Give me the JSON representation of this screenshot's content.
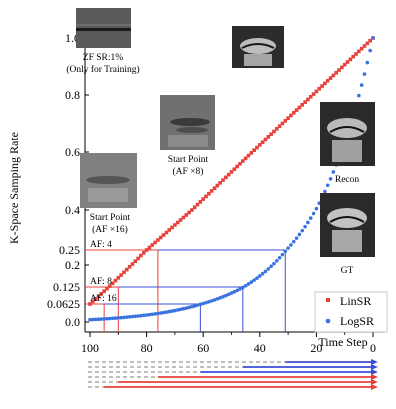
{
  "chart_data": {
    "type": "scatter",
    "ylabel": "K-Space Samping Rate",
    "xlabel": "Time Step",
    "xlim": [
      100,
      0
    ],
    "ylim": [
      0,
      1
    ],
    "x_ticks": [
      "100",
      "80",
      "60",
      "40",
      "20",
      "0"
    ],
    "y_ticks": [
      "1.0",
      "0.8",
      "0.6",
      "0.4",
      "0.25",
      "0.2",
      "0.125",
      "0.0625",
      "0.0"
    ],
    "y_tick_values": [
      1.0,
      0.8,
      0.6,
      0.4,
      0.25,
      0.2,
      0.125,
      0.0625,
      0.0
    ],
    "legend_position": "bottom-right",
    "series": [
      {
        "name": "LinSR",
        "color": "#e8403a",
        "formula": "linear",
        "x_start": 100,
        "x_end": 0,
        "y_start": 0.0625,
        "y_end": 1.0
      },
      {
        "name": "LogSR",
        "color": "#3a72e0",
        "formula": "exponential",
        "x_start": 100,
        "x_end": 0,
        "y_start": 0.0,
        "y_end": 1.0
      }
    ],
    "annotations": [
      {
        "label": "AF: 4",
        "y": 0.25,
        "x_lin": 76,
        "x_log": 31
      },
      {
        "label": "AF: 8",
        "y": 0.125,
        "x_lin": 90,
        "x_log": 46
      },
      {
        "label": "AF: 16",
        "y": 0.0625,
        "x_lin": 95,
        "x_log": 61
      }
    ],
    "image_captions": [
      {
        "lines": [
          "ZF SR:1%",
          "(Only for Training)"
        ]
      },
      {
        "lines": [
          "Start Point",
          "(AF ×8)"
        ]
      },
      {
        "lines": [
          "Start Point",
          "(AF ×16)"
        ]
      },
      {
        "lines": [
          "Recon"
        ]
      },
      {
        "lines": [
          "GT"
        ]
      }
    ]
  }
}
